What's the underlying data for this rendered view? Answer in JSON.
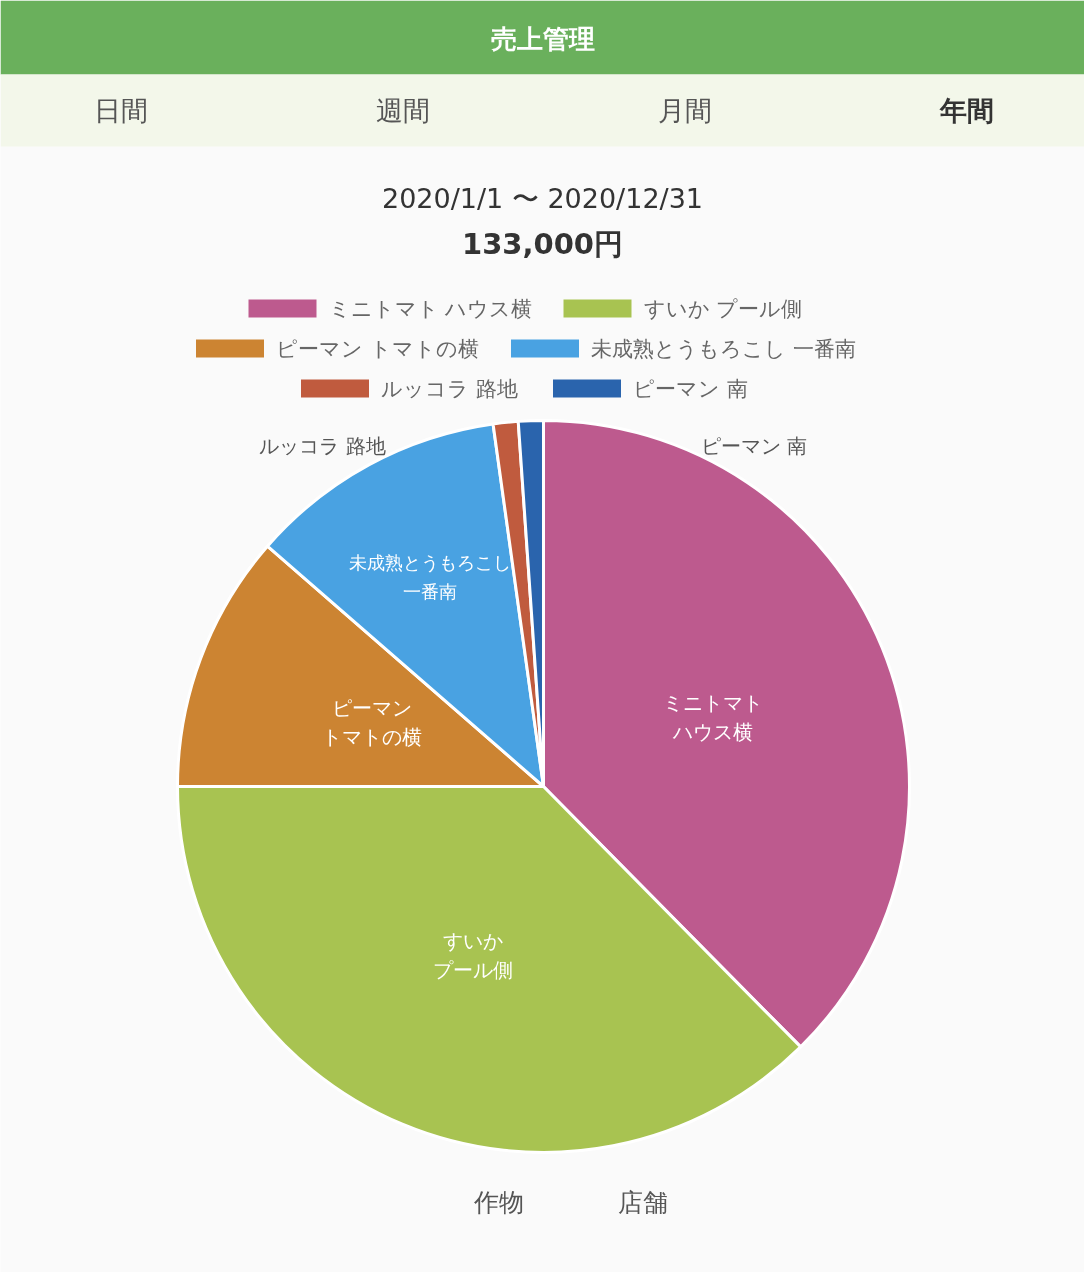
{
  "chart_data": {
    "type": "pie",
    "title": "売上管理",
    "subtitle": "2020/1/1 〜 2020/12/31",
    "categories": [
      "ミニトマト ハウス横",
      "すいか プール側",
      "ピーマン トマトの横",
      "未成熟とうもろこし 一番南",
      "ルッコラ 路地",
      "ピーマン 南"
    ],
    "values": [
      37.6,
      37.4,
      11.4,
      11.4,
      1.1,
      1.1
    ],
    "colors": [
      "#bd5a8e",
      "#a8c351",
      "#cc8432",
      "#49a2e2",
      "#c05b3e",
      "#2a64ad"
    ],
    "legend": "top",
    "annotations": [
      "日間",
      "週間",
      "月間",
      "年間",
      "133,000円",
      "作物",
      "店舗"
    ]
  }
}
